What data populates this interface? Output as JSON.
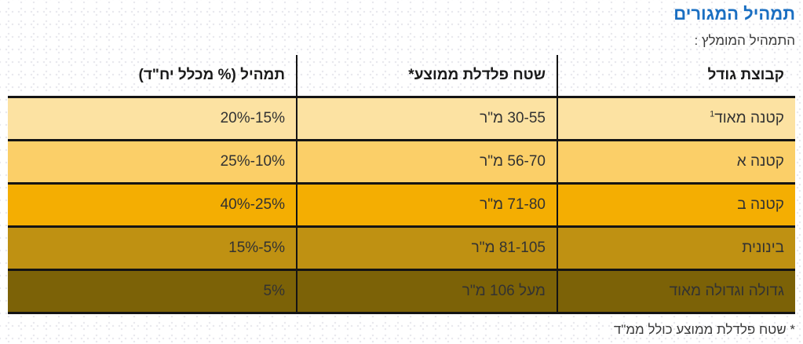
{
  "page": {
    "title": "תמהיל המגורים",
    "subtitle": "התמהיל המומלץ :",
    "footnote": "* שטח פלדלת ממוצע כולל ממ\"ד"
  },
  "colors": {
    "title_blue": "#1a6fc2",
    "grid_line_black": "#141414",
    "cell_text": "#323232",
    "row_colors": [
      "#fce2a2",
      "#fbcf68",
      "#f4ae02",
      "#bf9112",
      "#7c6207"
    ]
  },
  "table": {
    "columns": [
      {
        "id": "group",
        "label": "קבוצת גודל"
      },
      {
        "id": "area",
        "label": "שטח פלדלת ממוצע*"
      },
      {
        "id": "mix",
        "label": "תמהיל (% מכלל יח\"ד)"
      }
    ],
    "rows": [
      {
        "group": "קטנה מאוד",
        "group_sup": "1",
        "area": "30-55 מ\"ר",
        "mix": "15%-20%",
        "color": "#fce2a2"
      },
      {
        "group": "קטנה א",
        "group_sup": "",
        "area": "56-70 מ\"ר",
        "mix": "10%-25%",
        "color": "#fbcf68"
      },
      {
        "group": "קטנה ב",
        "group_sup": "",
        "area": "71-80 מ\"ר",
        "mix": "25%-40%",
        "color": "#f4ae02"
      },
      {
        "group": "בינונית",
        "group_sup": "",
        "area": "81-105 מ\"ר",
        "mix": "5%-15%",
        "color": "#bf9112"
      },
      {
        "group": "גדולה וגדולה מאוד",
        "group_sup": "",
        "area": "מעל 106 מ\"ר",
        "mix": "5%",
        "color": "#7c6207"
      }
    ]
  }
}
